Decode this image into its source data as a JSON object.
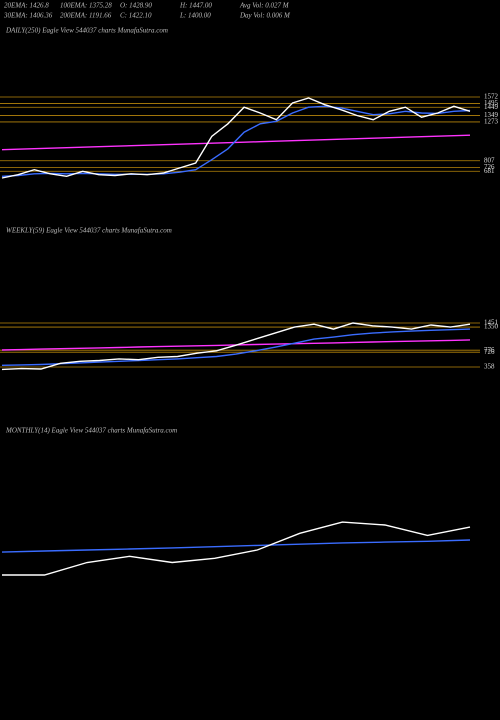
{
  "header": {
    "line1": [
      "20EMA: 1426.8",
      "100EMA: 1375.28",
      "O: 1428.90",
      "H: 1447.00",
      "Avg Vol: 0.027 M"
    ],
    "line2": [
      "30EMA: 1406.36",
      "200EMA: 1191.66",
      "C: 1422.10",
      "L: 1400.00",
      "Day Vol: 0.006  M"
    ]
  },
  "chart_data": [
    {
      "type": "line",
      "title": "DAILY(250) Eagle  View  544037 charts MunafaSutra.com",
      "ylim": [
        336,
        2256
      ],
      "yticks": [
        1572,
        1495,
        1449,
        1349,
        1273,
        807,
        726,
        681
      ],
      "tick_color": "#b8860b",
      "series": [
        {
          "color": "#ff33ff",
          "values": [
            940,
            946,
            952,
            958,
            964,
            970,
            976,
            982,
            988,
            994,
            1000,
            1006,
            1012,
            1018,
            1024,
            1030,
            1036,
            1042,
            1048,
            1054,
            1060,
            1066,
            1072,
            1078,
            1084,
            1090,
            1096,
            1102,
            1108,
            1114
          ]
        },
        {
          "color": "#3a6cff",
          "values": [
            620,
            630,
            650,
            655,
            650,
            655,
            650,
            645,
            645,
            645,
            650,
            670,
            700,
            820,
            950,
            1150,
            1250,
            1280,
            1380,
            1450,
            1460,
            1440,
            1400,
            1360,
            1370,
            1400,
            1380,
            1375,
            1400,
            1410
          ]
        },
        {
          "color": "#ffffff",
          "values": [
            600,
            640,
            700,
            650,
            620,
            680,
            640,
            630,
            650,
            640,
            660,
            720,
            780,
            1100,
            1250,
            1450,
            1380,
            1300,
            1500,
            1560,
            1480,
            1420,
            1350,
            1300,
            1400,
            1450,
            1330,
            1380,
            1460,
            1400
          ]
        }
      ]
    },
    {
      "type": "line",
      "title": "WEEKLY(59) Eagle  View  544037 charts MunafaSutra.com",
      "ylim": [
        -460,
        3510
      ],
      "yticks": [
        1451,
        1350,
        776,
        726,
        358
      ],
      "tick_color": "#b8860b",
      "series": [
        {
          "color": "#ff33ff",
          "values": [
            781,
            791,
            802,
            812,
            823,
            833,
            843,
            854,
            864,
            874,
            885,
            895,
            906,
            916,
            926,
            937,
            947,
            958,
            968,
            978,
            989,
            999,
            1009,
            1020,
            1030
          ]
        },
        {
          "color": "#3a6cff",
          "values": [
            400,
            410,
            420,
            440,
            460,
            480,
            500,
            520,
            540,
            560,
            590,
            620,
            680,
            760,
            850,
            950,
            1050,
            1100,
            1160,
            1200,
            1230,
            1250,
            1270,
            1285,
            1300
          ]
        },
        {
          "color": "#ffffff",
          "values": [
            300,
            320,
            310,
            450,
            500,
            520,
            560,
            540,
            600,
            620,
            700,
            760,
            900,
            1050,
            1200,
            1350,
            1420,
            1300,
            1450,
            1380,
            1350,
            1300,
            1400,
            1350,
            1420
          ]
        }
      ]
    },
    {
      "type": "line",
      "title": "MONTHLY(14) Eagle  View  544037 charts MunafaSutra.com",
      "ylim": [
        -2700,
        3540
      ],
      "series": [
        {
          "color": "#3a6cff",
          "values": [
            850,
            875,
            900,
            925,
            950,
            980,
            1010,
            1040,
            1070,
            1090,
            1110,
            1140
          ]
        },
        {
          "color": "#ffffff",
          "values": [
            300,
            300,
            600,
            750,
            600,
            700,
            900,
            1300,
            1570,
            1500,
            1250,
            1450
          ]
        }
      ]
    }
  ]
}
